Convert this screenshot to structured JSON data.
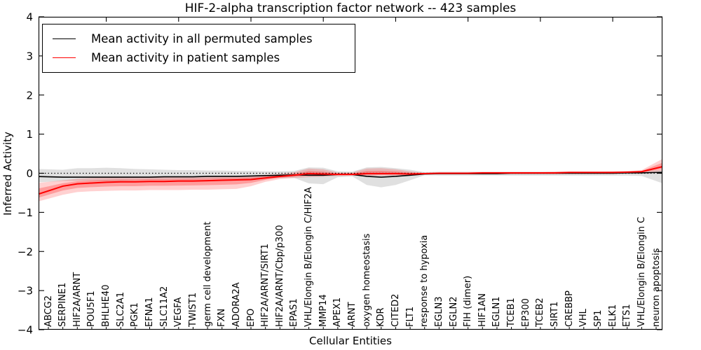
{
  "chart_data": {
    "type": "line",
    "title": "HIF-2-alpha transcription factor network -- 423 samples",
    "xlabel": "Cellular Entities",
    "ylabel": "Inferred Activity",
    "ylim": [
      -4,
      4
    ],
    "yticks": [
      4,
      3,
      2,
      1,
      0,
      -1,
      -2,
      -3,
      -4
    ],
    "ytick_labels": [
      "4",
      "3",
      "2",
      "1",
      "0",
      "−1",
      "−2",
      "−3",
      "−4"
    ],
    "x_top_tick_indices": [
      4,
      9,
      14,
      19,
      24,
      29,
      34,
      39
    ],
    "grid": false,
    "legend_position": "upper left",
    "zero_line": {
      "y": 0,
      "style": "dotted",
      "color": "#000000"
    },
    "categories": [
      "ABCG2",
      "SERPINE1",
      "HIF2A/ARNT",
      "POU5F1",
      "BHLHE40",
      "SLC2A1",
      "PGK1",
      "EFNA1",
      "SLC11A2",
      "VEGFA",
      "TWIST1",
      "germ cell development",
      "FXN",
      "ADORA2A",
      "EPO",
      "HIF2A/ARNT/SIRT1",
      "HIF2A/ARNT/Cbp/p300",
      "EPAS1",
      "VHL/Elongin B/Elongin C/HIF2A",
      "MMP14",
      "APEX1",
      "ARNT",
      "oxygen homeostasis",
      "KDR",
      "CITED2",
      "FLT1",
      "response to hypoxia",
      "EGLN3",
      "EGLN2",
      "FIH (dimer)",
      "HIF1AN",
      "EGLN1",
      "TCEB1",
      "EP300",
      "TCEB2",
      "SIRT1",
      "CREBBP",
      "VHL",
      "SP1",
      "ELK1",
      "ETS1",
      "VHL/Elongin B/Elongin C",
      "neuron apoptosis"
    ],
    "series": [
      {
        "name": "Mean activity in all permuted samples",
        "color": "#000000",
        "band_color": "rgba(0,0,0,0.12)",
        "line_width": 1.6,
        "values": [
          -0.09,
          -0.1,
          -0.1,
          -0.1,
          -0.1,
          -0.1,
          -0.1,
          -0.1,
          -0.09,
          -0.09,
          -0.09,
          -0.08,
          -0.08,
          -0.08,
          -0.07,
          -0.06,
          -0.05,
          -0.04,
          -0.05,
          -0.05,
          -0.03,
          -0.03,
          -0.08,
          -0.1,
          -0.08,
          -0.05,
          -0.02,
          -0.01,
          -0.01,
          -0.01,
          -0.01,
          -0.01,
          0.0,
          0.0,
          0.0,
          0.0,
          0.0,
          0.0,
          0.0,
          0.0,
          0.01,
          0.01,
          0.02
        ],
        "band_low": [
          -0.22,
          -0.2,
          -0.2,
          -0.2,
          -0.2,
          -0.19,
          -0.18,
          -0.17,
          -0.17,
          -0.16,
          -0.16,
          -0.15,
          -0.15,
          -0.14,
          -0.14,
          -0.13,
          -0.12,
          -0.12,
          -0.26,
          -0.28,
          -0.1,
          -0.08,
          -0.3,
          -0.36,
          -0.3,
          -0.18,
          -0.05,
          -0.06,
          -0.06,
          -0.06,
          -0.06,
          -0.06,
          -0.06,
          -0.06,
          -0.06,
          -0.06,
          -0.06,
          -0.06,
          -0.06,
          -0.06,
          -0.06,
          -0.07,
          -0.2
        ],
        "band_high": [
          0.1,
          0.09,
          0.13,
          0.13,
          0.14,
          0.13,
          0.11,
          0.1,
          0.09,
          0.08,
          0.08,
          0.07,
          0.07,
          0.06,
          0.06,
          0.05,
          0.05,
          0.06,
          0.15,
          0.14,
          0.05,
          0.04,
          0.15,
          0.16,
          0.13,
          0.09,
          0.03,
          0.04,
          0.04,
          0.04,
          0.04,
          0.04,
          0.04,
          0.04,
          0.04,
          0.04,
          0.04,
          0.04,
          0.04,
          0.04,
          0.04,
          0.05,
          0.08
        ]
      },
      {
        "name": "Mean activity in patient samples",
        "color": "#ff0000",
        "band_color": "rgba(255,0,0,0.18)",
        "line_width": 2.0,
        "values": [
          -0.45,
          -0.33,
          -0.27,
          -0.25,
          -0.23,
          -0.22,
          -0.22,
          -0.21,
          -0.21,
          -0.2,
          -0.2,
          -0.19,
          -0.18,
          -0.17,
          -0.16,
          -0.12,
          -0.08,
          -0.05,
          -0.01,
          -0.02,
          -0.03,
          -0.03,
          -0.01,
          -0.01,
          -0.01,
          -0.02,
          -0.01,
          0.0,
          0.0,
          0.0,
          0.01,
          0.01,
          0.01,
          0.01,
          0.01,
          0.01,
          0.02,
          0.02,
          0.02,
          0.02,
          0.03,
          0.04,
          0.13
        ],
        "band_low": [
          -0.65,
          -0.55,
          -0.48,
          -0.46,
          -0.45,
          -0.44,
          -0.44,
          -0.43,
          -0.43,
          -0.43,
          -0.42,
          -0.42,
          -0.41,
          -0.4,
          -0.33,
          -0.22,
          -0.15,
          -0.12,
          -0.1,
          -0.09,
          -0.07,
          -0.06,
          -0.07,
          -0.06,
          -0.06,
          -0.05,
          -0.03,
          -0.02,
          -0.02,
          -0.02,
          -0.02,
          -0.02,
          -0.02,
          -0.02,
          -0.02,
          -0.02,
          -0.01,
          -0.01,
          -0.01,
          -0.01,
          0.0,
          0.0,
          0.04
        ],
        "band_high": [
          -0.22,
          -0.18,
          -0.14,
          -0.12,
          -0.11,
          -0.1,
          -0.1,
          -0.09,
          -0.09,
          -0.09,
          -0.08,
          -0.08,
          -0.07,
          -0.07,
          -0.06,
          -0.04,
          -0.02,
          0.03,
          0.12,
          0.1,
          0.02,
          0.02,
          0.12,
          0.13,
          0.1,
          0.05,
          0.01,
          0.02,
          0.02,
          0.02,
          0.03,
          0.03,
          0.03,
          0.03,
          0.03,
          0.04,
          0.04,
          0.04,
          0.04,
          0.05,
          0.05,
          0.08,
          0.28
        ]
      }
    ]
  }
}
